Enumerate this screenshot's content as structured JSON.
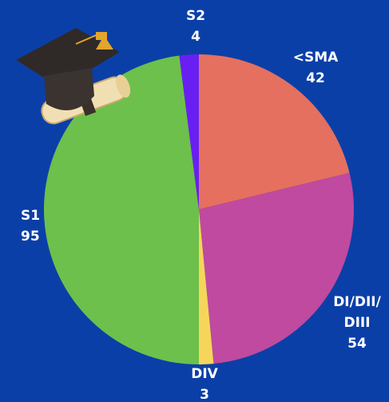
{
  "chart_data": {
    "type": "pie",
    "categories": [
      "<SMA",
      "DI/DII/DIII",
      "DIV",
      "S1",
      "S2"
    ],
    "values": [
      42,
      54,
      3,
      95,
      4
    ],
    "colors": [
      "#e5705f",
      "#c04a9f",
      "#f6d65a",
      "#6dc04b",
      "#6a1ff2"
    ]
  }
}
